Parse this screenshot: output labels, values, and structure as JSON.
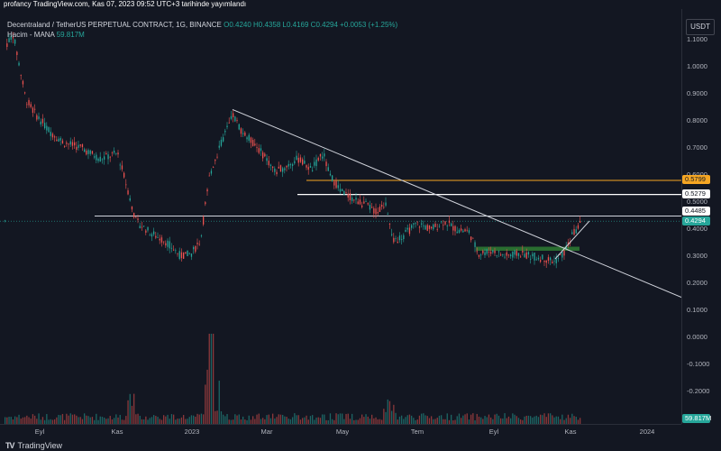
{
  "publish_line": "profancy TradingView.com, Kas 07, 2023 09:52 UTC+3 tarihinde yayımlandı",
  "legend": {
    "title": "Decentraland / TetherUS PERPETUAL CONTRACT, 1G, BINANCE",
    "o": "O0.4240",
    "h": "H0.4358",
    "l": "L0.4169",
    "c": "C0.4294",
    "change": "+0.0053 (+1.25%)",
    "volume_label": "Hacim - MANA",
    "volume_value": "59.817M"
  },
  "currency": "USDT",
  "price_ticks": [
    "1.1000",
    "1.0000",
    "0.9000",
    "0.8000",
    "0.7000",
    "0.6000",
    "0.5000",
    "0.4000",
    "0.3000",
    "0.2000",
    "0.1000",
    "0.0000",
    "-0.1000",
    "-0.2000"
  ],
  "price_tags": {
    "orange": "0.5799",
    "white": "0.5279",
    "level": "0.4485",
    "current": "0.4294",
    "volume": "59.817M"
  },
  "time_ticks": [
    "Eyl",
    "Kas",
    "2023",
    "Mar",
    "May",
    "Tem",
    "Eyl",
    "Kas",
    "2024"
  ],
  "logo_text": "TradingView",
  "colors": {
    "background": "#131722",
    "up": "#26a69a",
    "down": "#ef5350",
    "orange_level": "#f5a623",
    "white_level": "#ffffff",
    "support_zone": "#2e7d32"
  },
  "chart_data": {
    "type": "candlestick",
    "title": "Decentraland / TetherUS PERPETUAL CONTRACT, 1G, BINANCE",
    "x": [
      "Eyl",
      "Kas",
      "2023",
      "Mar",
      "May",
      "Tem",
      "Eyl",
      "Kas",
      "2024"
    ],
    "close_path": [
      {
        "t": "Ağu 2022",
        "v": 1.08
      },
      {
        "t": "Eyl 2022",
        "v": 0.82
      },
      {
        "t": "Eki 2022",
        "v": 0.72
      },
      {
        "t": "Kas 2022",
        "v": 0.62
      },
      {
        "t": "Ara 2022",
        "v": 0.34
      },
      {
        "t": "Oca 2023",
        "v": 0.32
      },
      {
        "t": "Şub 2023",
        "v": 0.76
      },
      {
        "t": "Mar 2023",
        "v": 0.58
      },
      {
        "t": "Nis 2023",
        "v": 0.65
      },
      {
        "t": "May 2023",
        "v": 0.49
      },
      {
        "t": "Haz 2023",
        "v": 0.36
      },
      {
        "t": "Tem 2023",
        "v": 0.39
      },
      {
        "t": "Ağu 2023",
        "v": 0.31
      },
      {
        "t": "Eyl 2023",
        "v": 0.29
      },
      {
        "t": "Eki 2023",
        "v": 0.3
      },
      {
        "t": "Kas 2023",
        "v": 0.4294
      }
    ],
    "levels": [
      0.5799,
      0.5279,
      0.4485
    ],
    "support_zone": [
      0.32,
      0.335
    ],
    "ylim": [
      -0.25,
      1.2
    ]
  }
}
